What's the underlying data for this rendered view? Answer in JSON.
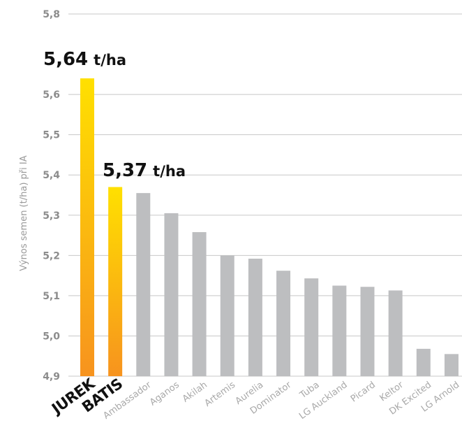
{
  "chart_data": {
    "type": "bar",
    "ylabel": "Výnos semen (t/ha) při IA",
    "ylim": [
      4.9,
      5.8
    ],
    "yticks": [
      "4,9",
      "5,0",
      "5,1",
      "5,2",
      "5,3",
      "5,4",
      "5,5",
      "5,6",
      "5,8"
    ],
    "ytick_values": [
      4.9,
      5.0,
      5.1,
      5.2,
      5.3,
      5.4,
      5.5,
      5.6,
      5.8
    ],
    "grid": true,
    "categories": [
      "JUREK",
      "BATIS",
      "Ambassador",
      "Aganos",
      "Akilah",
      "Artemis",
      "Aurelia",
      "Dominator",
      "Tuba",
      "LG Auckland",
      "Picard",
      "Keltor",
      "DK Excited",
      "LG Arnold"
    ],
    "values": [
      5.64,
      5.37,
      5.355,
      5.305,
      5.258,
      5.2,
      5.192,
      5.162,
      5.143,
      5.125,
      5.122,
      5.113,
      4.968,
      4.955
    ],
    "highlighted": [
      "JUREK",
      "BATIS"
    ],
    "annotations": [
      {
        "category": "JUREK",
        "value_text": "5,64",
        "unit": "t/ha"
      },
      {
        "category": "BATIS",
        "value_text": "5,37",
        "unit": "t/ha"
      }
    ],
    "colors": {
      "highlight_top": "#FFE000",
      "highlight_bottom": "#F7931E",
      "bar": "#BDBEC0",
      "grid": "#C8C8C8",
      "tick": "#8C8C8C"
    }
  }
}
